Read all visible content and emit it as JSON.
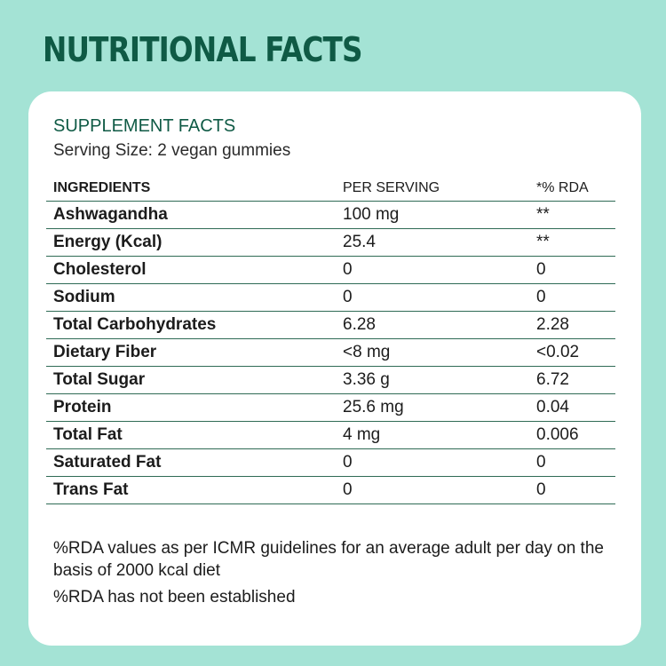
{
  "header": {
    "title": "NUTRITIONAL FACTS"
  },
  "card": {
    "subtitle": "SUPPLEMENT FACTS",
    "serving_size": "Serving Size: 2 vegan gummies"
  },
  "table": {
    "columns": {
      "ingredient": "INGREDIENTS",
      "per_serving": "PER SERVING",
      "rda": "*% RDA"
    },
    "rows": [
      {
        "name": "Ashwagandha",
        "per_serving": "100 mg",
        "rda": "**"
      },
      {
        "name": "Energy (Kcal)",
        "per_serving": "25.4",
        "rda": "**"
      },
      {
        "name": "Cholesterol",
        "per_serving": "0",
        "rda": "0"
      },
      {
        "name": "Sodium",
        "per_serving": "0",
        "rda": "0"
      },
      {
        "name": "Total Carbohydrates",
        "per_serving": "6.28",
        "rda": "2.28"
      },
      {
        "name": "Dietary Fiber",
        "per_serving": "<8 mg",
        "rda": "<0.02"
      },
      {
        "name": "Total Sugar",
        "per_serving": "3.36 g",
        "rda": "6.72"
      },
      {
        "name": "Protein",
        "per_serving": "25.6 mg",
        "rda": "0.04"
      },
      {
        "name": "Total Fat",
        "per_serving": "4 mg",
        "rda": "0.006"
      },
      {
        "name": "Saturated Fat",
        "per_serving": "0",
        "rda": "0"
      },
      {
        "name": "Trans Fat",
        "per_serving": "0",
        "rda": "0"
      }
    ]
  },
  "footnotes": {
    "rda_note": "%RDA values as per ICMR guidelines for an average adult per day on the basis of 2000 kcal diet",
    "not_established_note": "%RDA has not been established"
  },
  "colors": {
    "background": "#a4e3d5",
    "title_green": "#0f5a45",
    "card_background": "#ffffff",
    "rule_green": "#2f6b55"
  }
}
